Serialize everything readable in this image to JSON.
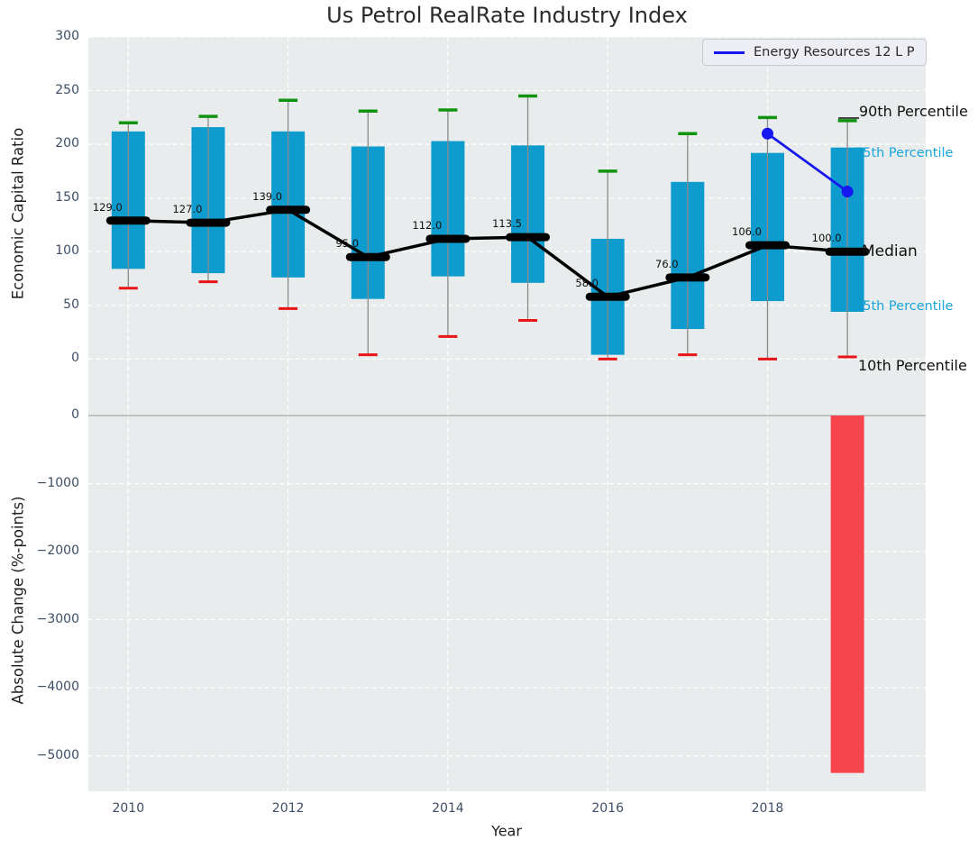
{
  "title": "Us Petrol RealRate Industry Index",
  "legend": {
    "label": "Energy Resources 12 L P"
  },
  "axes": {
    "top_ylabel": "Economic Capital Ratio",
    "bottom_ylabel": "Absolute Change (%-points)",
    "xlabel": "Year"
  },
  "annotations": {
    "p90": "90th Percentile",
    "p75": "75th Percentile",
    "median": "Median",
    "p25": "25th Percentile",
    "p10": "10th Percentile"
  },
  "colors": {
    "bar": "#0e9bce",
    "p90_cap": "#109410",
    "p10_cap": "#e81416",
    "median": "#000000",
    "company_line": "#1616f0",
    "change_bar": "#f8444d",
    "plot_bg": "#e8eced",
    "grid": "#ffffff",
    "tick": "#3d4e66",
    "annotation_cyan": "#18a5d8",
    "whisker": "#8a8a8a",
    "zero_line": "#b3b3b3"
  },
  "chart_data": [
    {
      "type": "bar",
      "panel": "top",
      "title": "Us Petrol RealRate Industry Index",
      "ylabel": "Economic Capital Ratio",
      "x": [
        2010,
        2011,
        2012,
        2013,
        2014,
        2015,
        2016,
        2017,
        2018,
        2019
      ],
      "series": [
        {
          "name": "90th Percentile",
          "values": [
            220,
            226,
            241,
            231,
            232,
            245,
            175,
            210,
            225,
            222
          ]
        },
        {
          "name": "75th Percentile",
          "values": [
            212,
            216,
            212,
            198,
            203,
            199,
            112,
            165,
            192,
            197
          ]
        },
        {
          "name": "Median",
          "values": [
            129,
            127,
            139,
            95,
            112,
            113.5,
            58,
            76,
            106,
            100
          ]
        },
        {
          "name": "25th Percentile",
          "values": [
            84,
            80,
            76,
            56,
            77,
            71,
            4,
            28,
            54,
            44
          ]
        },
        {
          "name": "10th Percentile",
          "values": [
            66,
            72,
            47,
            4,
            21,
            36,
            0,
            4,
            0,
            2
          ]
        }
      ],
      "median_labels": [
        "129.0",
        "127.0",
        "139.0",
        "95.0",
        "112.0",
        "113.5",
        "58.0",
        "76.0",
        "106.0",
        "100.0"
      ],
      "company_line": {
        "name": "Energy Resources 12 L P",
        "x": [
          2018,
          2019
        ],
        "values": [
          210,
          156
        ]
      },
      "yticks": [
        0,
        50,
        100,
        150,
        200,
        250,
        300
      ],
      "xticks": [
        2010,
        2012,
        2014,
        2016,
        2018
      ],
      "ylim": [
        -45,
        300
      ],
      "xlim": [
        2009.5,
        2019.98
      ],
      "grid": true,
      "legend_position": "upper right"
    },
    {
      "type": "bar",
      "panel": "bottom",
      "ylabel": "Absolute Change (%-points)",
      "xlabel": "Year",
      "x": [
        2019
      ],
      "values": [
        -5250
      ],
      "yticks": [
        0,
        -1000,
        -2000,
        -3000,
        -4000,
        -5000
      ],
      "ylim": [
        -5520,
        120
      ],
      "grid": true
    }
  ]
}
